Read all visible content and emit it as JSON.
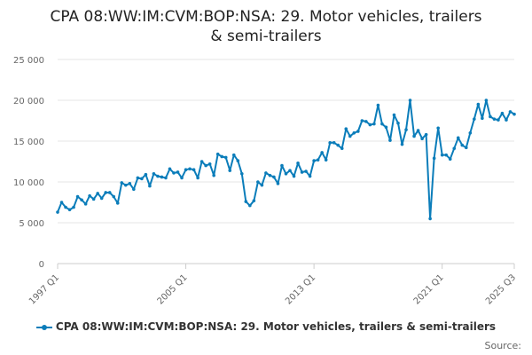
{
  "chart_data": {
    "type": "line",
    "title": "CPA 08:WW:IM:CVM:BOP:NSA: 29. Motor vehicles, trailers & semi-trailers",
    "title_lines": [
      "CPA 08:WW:IM:CVM:BOP:NSA: 29. Motor vehicles, trailers",
      "& semi-trailers"
    ],
    "xlabel": "",
    "ylabel": "",
    "ylim": [
      0,
      25000
    ],
    "y_ticks": [
      0,
      5000,
      10000,
      15000,
      20000,
      25000
    ],
    "y_tick_labels": [
      "0",
      "5 000",
      "10 000",
      "15 000",
      "20 000",
      "25 000"
    ],
    "x_tick_labels": [
      "1997 Q1",
      "2005 Q1",
      "2013 Q1",
      "2021 Q1",
      "2025 Q3"
    ],
    "x_tick_indices": [
      0,
      32,
      64,
      96,
      114
    ],
    "grid": true,
    "legend_position": "bottom",
    "series": [
      {
        "name": "CPA 08:WW:IM:CVM:BOP:NSA: 29. Motor vehicles, trailers & semi-trailers",
        "color": "#0b7dba",
        "start_period": "1997 Q1",
        "values": [
          6300,
          7500,
          6900,
          6600,
          6900,
          8200,
          7800,
          7300,
          8300,
          7900,
          8600,
          8000,
          8700,
          8700,
          8200,
          7400,
          9900,
          9600,
          9800,
          9100,
          10500,
          10400,
          10900,
          9500,
          11000,
          10700,
          10600,
          10500,
          11600,
          11100,
          11200,
          10500,
          11500,
          11600,
          11500,
          10500,
          12500,
          12000,
          12200,
          10800,
          13400,
          13100,
          13000,
          11400,
          13300,
          12600,
          11000,
          7600,
          7100,
          7700,
          10000,
          9600,
          11100,
          10800,
          10600,
          9800,
          12000,
          11000,
          11400,
          10700,
          12300,
          11200,
          11300,
          10700,
          12600,
          12700,
          13600,
          12700,
          14800,
          14800,
          14500,
          14100,
          16500,
          15600,
          16000,
          16200,
          17500,
          17400,
          17000,
          17100,
          19400,
          17100,
          16700,
          15100,
          18200,
          17200,
          14600,
          16400,
          20000,
          15600,
          16300,
          15300,
          15800,
          5500,
          12900,
          16600,
          13300,
          13300,
          12800,
          14100,
          15400,
          14500,
          14200,
          16000,
          17700,
          19500,
          17800,
          20000,
          18000,
          17700,
          17600,
          18400,
          17600,
          18600,
          18300
        ]
      }
    ]
  },
  "legend": {
    "label": "CPA 08:WW:IM:CVM:BOP:NSA: 29. Motor vehicles, trailers & semi-trailers"
  },
  "source": {
    "label": "Source:"
  }
}
